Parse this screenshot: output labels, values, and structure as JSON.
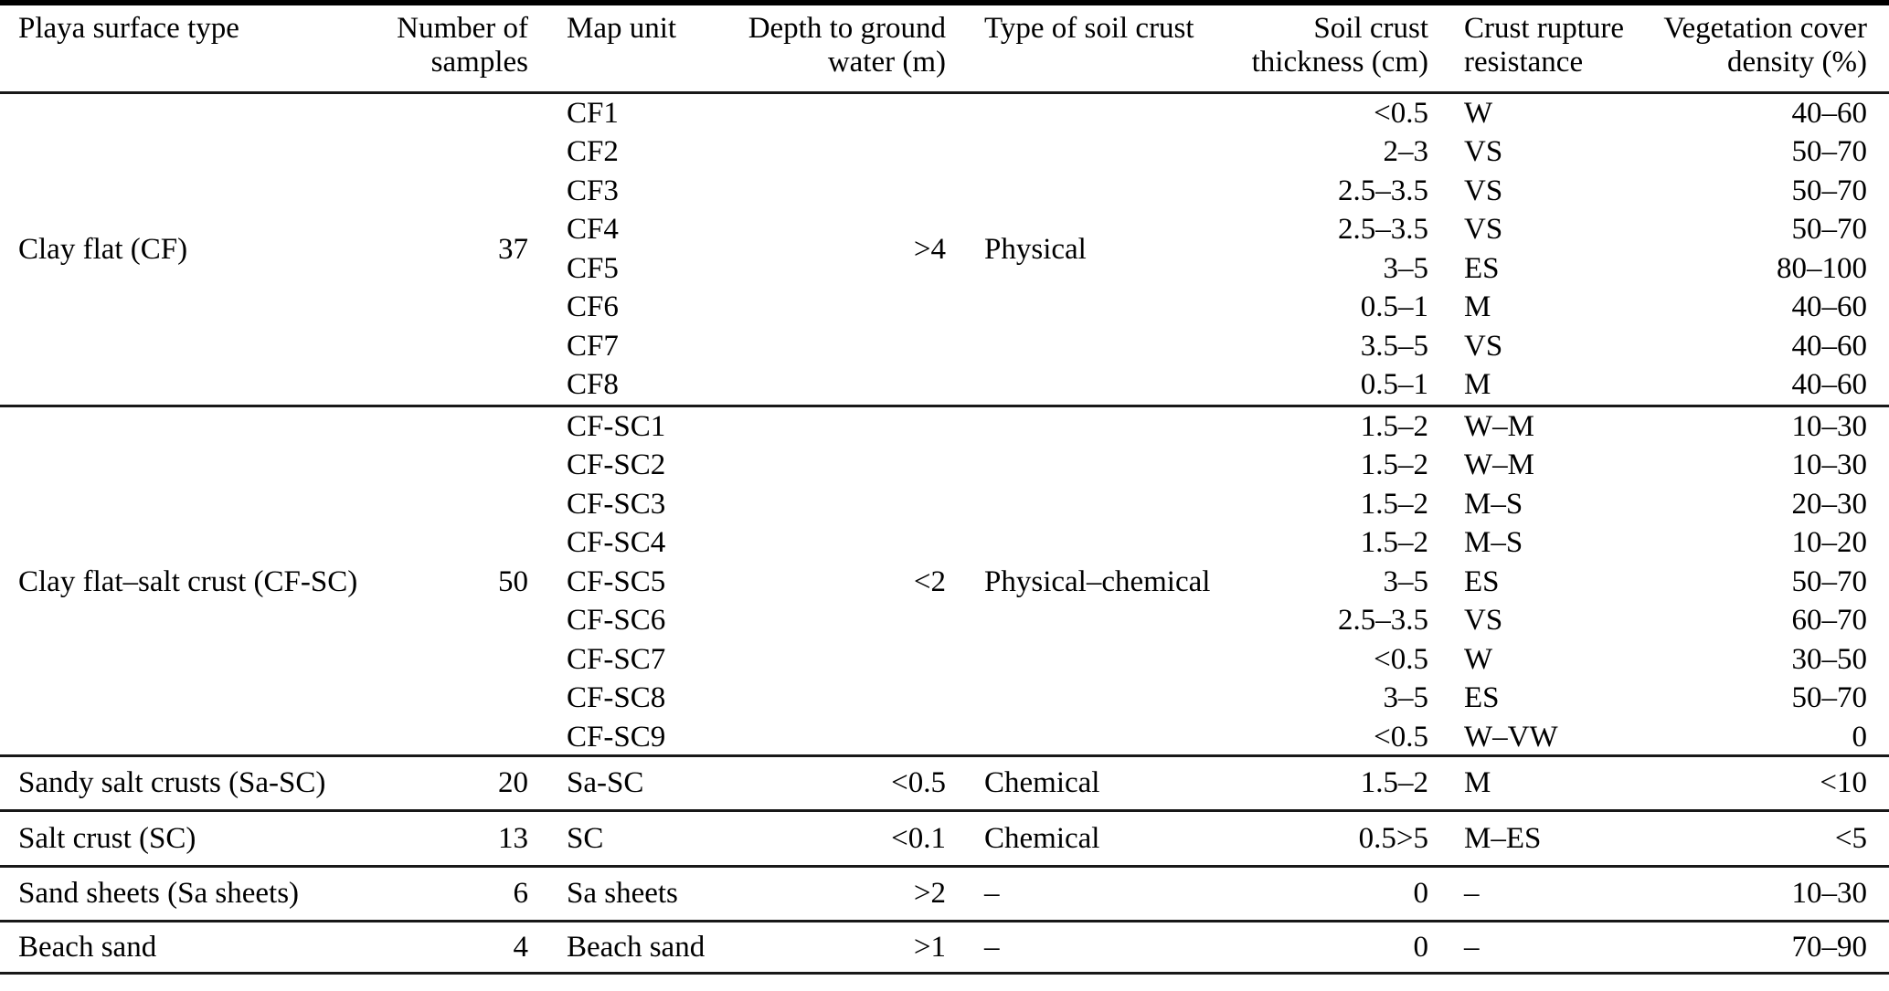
{
  "table": {
    "columns": [
      "Playa surface type",
      "Number of\nsamples",
      "Map unit",
      "Depth to ground\nwater (m)",
      "Type of soil crust",
      "Soil crust\nthickness (cm)",
      "Crust rupture\nresistance",
      "Vegetation cover\ndensity (%)"
    ],
    "groups": [
      {
        "surface_type": "Clay flat (CF)",
        "samples": "37",
        "depth_to_ground_water": ">4",
        "soil_crust_type": "Physical",
        "units": [
          {
            "map_unit": "CF1",
            "thickness": "<0.5",
            "rupture_resistance": "W",
            "vegetation_cover": "40–60"
          },
          {
            "map_unit": "CF2",
            "thickness": "2–3",
            "rupture_resistance": "VS",
            "vegetation_cover": "50–70"
          },
          {
            "map_unit": "CF3",
            "thickness": "2.5–3.5",
            "rupture_resistance": "VS",
            "vegetation_cover": "50–70"
          },
          {
            "map_unit": "CF4",
            "thickness": "2.5–3.5",
            "rupture_resistance": "VS",
            "vegetation_cover": "50–70"
          },
          {
            "map_unit": "CF5",
            "thickness": "3–5",
            "rupture_resistance": "ES",
            "vegetation_cover": "80–100"
          },
          {
            "map_unit": "CF6",
            "thickness": "0.5–1",
            "rupture_resistance": "M",
            "vegetation_cover": "40–60"
          },
          {
            "map_unit": "CF7",
            "thickness": "3.5–5",
            "rupture_resistance": "VS",
            "vegetation_cover": "40–60"
          },
          {
            "map_unit": "CF8",
            "thickness": "0.5–1",
            "rupture_resistance": "M",
            "vegetation_cover": "40–60"
          }
        ]
      },
      {
        "surface_type": "Clay flat–salt crust (CF-SC)",
        "samples": "50",
        "depth_to_ground_water": "<2",
        "soil_crust_type": "Physical–chemical",
        "units": [
          {
            "map_unit": "CF-SC1",
            "thickness": "1.5–2",
            "rupture_resistance": "W–M",
            "vegetation_cover": "10–30"
          },
          {
            "map_unit": "CF-SC2",
            "thickness": "1.5–2",
            "rupture_resistance": "W–M",
            "vegetation_cover": "10–30"
          },
          {
            "map_unit": "CF-SC3",
            "thickness": "1.5–2",
            "rupture_resistance": "M–S",
            "vegetation_cover": "20–30"
          },
          {
            "map_unit": "CF-SC4",
            "thickness": "1.5–2",
            "rupture_resistance": "M–S",
            "vegetation_cover": "10–20"
          },
          {
            "map_unit": "CF-SC5",
            "thickness": "3–5",
            "rupture_resistance": "ES",
            "vegetation_cover": "50–70"
          },
          {
            "map_unit": "CF-SC6",
            "thickness": "2.5–3.5",
            "rupture_resistance": "VS",
            "vegetation_cover": "60–70"
          },
          {
            "map_unit": "CF-SC7",
            "thickness": "<0.5",
            "rupture_resistance": "W",
            "vegetation_cover": "30–50"
          },
          {
            "map_unit": "CF-SC8",
            "thickness": "3–5",
            "rupture_resistance": "ES",
            "vegetation_cover": "50–70"
          },
          {
            "map_unit": "CF-SC9",
            "thickness": "<0.5",
            "rupture_resistance": "W–VW",
            "vegetation_cover": "0"
          }
        ]
      },
      {
        "surface_type": "Sandy salt crusts (Sa-SC)",
        "samples": "20",
        "depth_to_ground_water": "<0.5",
        "soil_crust_type": "Chemical",
        "units": [
          {
            "map_unit": "Sa-SC",
            "thickness": "1.5–2",
            "rupture_resistance": "M",
            "vegetation_cover": "<10"
          }
        ]
      },
      {
        "surface_type": "Salt crust (SC)",
        "samples": "13",
        "depth_to_ground_water": "<0.1",
        "soil_crust_type": "Chemical",
        "units": [
          {
            "map_unit": "SC",
            "thickness": "0.5>5",
            "rupture_resistance": "M–ES",
            "vegetation_cover": "<5"
          }
        ]
      },
      {
        "surface_type": "Sand sheets (Sa sheets)",
        "samples": "6",
        "depth_to_ground_water": ">2",
        "soil_crust_type": "–",
        "units": [
          {
            "map_unit": "Sa sheets",
            "thickness": "0",
            "rupture_resistance": "–",
            "vegetation_cover": "10–30"
          }
        ]
      },
      {
        "surface_type": "Beach sand",
        "samples": "4",
        "depth_to_ground_water": ">1",
        "soil_crust_type": "–",
        "units": [
          {
            "map_unit": "Beach sand",
            "thickness": "0",
            "rupture_resistance": "–",
            "vegetation_cover": "70–90"
          }
        ]
      }
    ]
  }
}
